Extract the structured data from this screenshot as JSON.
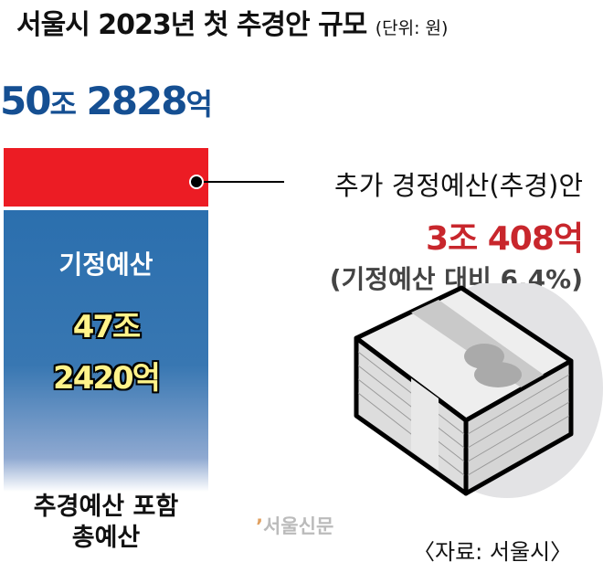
{
  "title": {
    "main": "서울시 2023년 첫 추경안 규모",
    "unit": "(단위: 원)"
  },
  "chart_data": {
    "type": "bar",
    "title": "서울시 2023년 첫 추경안 규모",
    "unit": "(단위: 원)",
    "total_label": {
      "num1": "50",
      "unit1": "조",
      "num2": "2828",
      "unit2": "억"
    },
    "total_value_won_eok": 502828,
    "series": [
      {
        "name": "기정예산",
        "value_eok": 472420,
        "label1": "47조",
        "label2": "2420억",
        "color": "#2b6fae"
      },
      {
        "name": "추가 경정예산(추경)안",
        "value_eok": 30408,
        "label": "3조 408억",
        "note": "(기정예산 대비 6.4%)",
        "color": "#ec1c24"
      }
    ],
    "bar_label": [
      "추경예산 포함",
      "총예산"
    ]
  },
  "colors": {
    "total": "#154f92",
    "supplement_value": "#c8262c",
    "base_value": "#fff38a"
  },
  "watermark": "서울신문",
  "source": "〈자료: 서울시〉",
  "icons": [
    "money-stack-icon"
  ]
}
